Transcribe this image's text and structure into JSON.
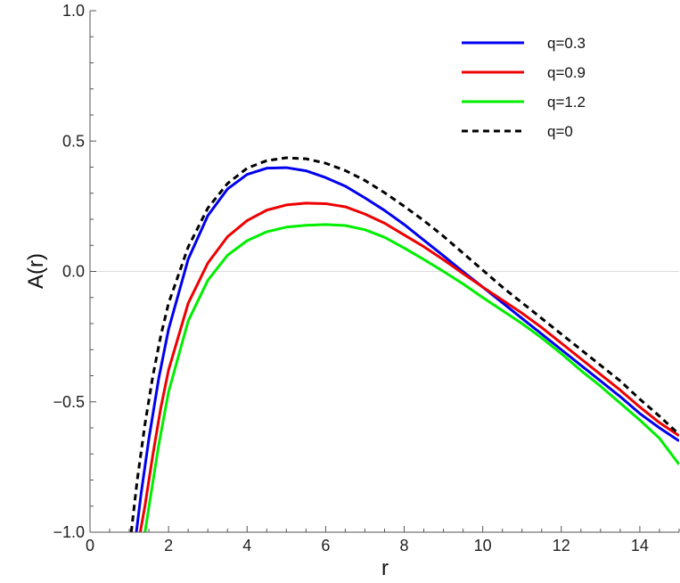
{
  "chart_data": {
    "type": "line",
    "title": "",
    "xlabel": "r",
    "ylabel": "A(r)",
    "xlim": [
      0,
      15
    ],
    "ylim": [
      -1.0,
      1.0
    ],
    "x_ticks": [
      0,
      2,
      4,
      6,
      8,
      10,
      12,
      14
    ],
    "x_tick_labels": [
      "0",
      "2",
      "4",
      "6",
      "8",
      "10",
      "12",
      "14"
    ],
    "y_ticks": [
      -1.0,
      -0.5,
      0.0,
      0.5,
      1.0
    ],
    "y_tick_labels": [
      "−1.0",
      "−0.5",
      "0.0",
      "0.5",
      "1.0"
    ],
    "grid": false,
    "zero_line": true,
    "legend_position": "top-right",
    "series": [
      {
        "name": "q=0.3",
        "color": "#0000ee",
        "style": "solid",
        "x": [
          1.18,
          1.3,
          1.5,
          1.75,
          2.0,
          2.5,
          3.0,
          3.5,
          4.0,
          4.5,
          5.0,
          5.5,
          6.0,
          6.5,
          7.0,
          7.5,
          8.0,
          8.5,
          9.0,
          9.5,
          10.0,
          10.5,
          11.0,
          11.5,
          12.0,
          12.5,
          13.0,
          13.5,
          14.0,
          14.5,
          15.0
        ],
        "y": [
          -1.0,
          -0.853,
          -0.641,
          -0.41,
          -0.222,
          0.047,
          0.214,
          0.316,
          0.372,
          0.396,
          0.398,
          0.386,
          0.36,
          0.327,
          0.282,
          0.234,
          0.18,
          0.12,
          0.06,
          -0.001,
          -0.06,
          -0.12,
          -0.18,
          -0.24,
          -0.3,
          -0.36,
          -0.42,
          -0.48,
          -0.545,
          -0.6,
          -0.65
        ]
      },
      {
        "name": "q=0.9",
        "color": "#ee0000",
        "style": "solid",
        "x": [
          1.28,
          1.4,
          1.6,
          1.8,
          2.0,
          2.5,
          3.0,
          3.5,
          4.0,
          4.5,
          5.0,
          5.5,
          6.0,
          6.5,
          7.0,
          7.5,
          8.0,
          8.5,
          9.0,
          9.5,
          10.0,
          10.5,
          11.0,
          11.5,
          12.0,
          12.5,
          13.0,
          13.5,
          14.0,
          14.5,
          15.0
        ],
        "y": [
          -1.0,
          -0.898,
          -0.703,
          -0.525,
          -0.378,
          -0.122,
          0.032,
          0.133,
          0.195,
          0.235,
          0.255,
          0.262,
          0.26,
          0.248,
          0.22,
          0.185,
          0.14,
          0.095,
          0.045,
          -0.008,
          -0.06,
          -0.11,
          -0.16,
          -0.215,
          -0.275,
          -0.335,
          -0.395,
          -0.455,
          -0.52,
          -0.58,
          -0.63
        ]
      },
      {
        "name": "q=1.2",
        "color": "#00ee00",
        "style": "solid",
        "x": [
          1.4,
          1.55,
          1.75,
          2.0,
          2.5,
          3.0,
          3.5,
          4.0,
          4.5,
          5.0,
          5.5,
          6.0,
          6.5,
          7.0,
          7.5,
          8.0,
          8.5,
          9.0,
          9.5,
          10.0,
          10.5,
          11.0,
          11.5,
          12.0,
          12.5,
          13.0,
          13.5,
          14.0,
          14.5,
          15.0
        ],
        "y": [
          -1.0,
          -0.855,
          -0.665,
          -0.462,
          -0.19,
          -0.034,
          0.062,
          0.118,
          0.152,
          0.17,
          0.177,
          0.18,
          0.176,
          0.16,
          0.131,
          0.09,
          0.046,
          0.0,
          -0.048,
          -0.1,
          -0.15,
          -0.2,
          -0.255,
          -0.315,
          -0.38,
          -0.44,
          -0.505,
          -0.57,
          -0.64,
          -0.74
        ]
      },
      {
        "name": "q=0",
        "color": "#000000",
        "style": "dashed",
        "x": [
          1.05,
          1.2,
          1.4,
          1.6,
          1.8,
          2.0,
          2.5,
          3.0,
          3.5,
          4.0,
          4.5,
          5.0,
          5.5,
          6.0,
          6.5,
          7.0,
          7.5,
          8.0,
          8.5,
          9.0,
          9.5,
          10.0,
          10.5,
          11.0,
          11.5,
          12.0,
          12.5,
          13.0,
          13.5,
          14.0,
          14.5,
          15.0
        ],
        "y": [
          -1.0,
          -0.803,
          -0.585,
          -0.401,
          -0.248,
          -0.122,
          0.094,
          0.243,
          0.337,
          0.396,
          0.425,
          0.436,
          0.432,
          0.415,
          0.387,
          0.349,
          0.302,
          0.25,
          0.195,
          0.135,
          0.07,
          0.005,
          -0.06,
          -0.12,
          -0.18,
          -0.24,
          -0.3,
          -0.36,
          -0.42,
          -0.49,
          -0.555,
          -0.625
        ]
      }
    ]
  }
}
